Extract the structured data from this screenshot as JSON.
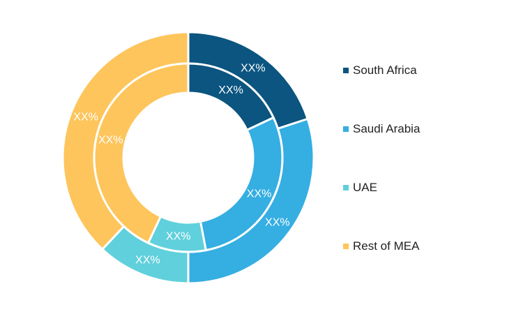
{
  "chart_data": {
    "type": "pie",
    "variant": "nested-donut",
    "title": "",
    "categories": [
      "South Africa",
      "Saudi Arabia",
      "UAE",
      "Rest of MEA"
    ],
    "colors": [
      "#0b5580",
      "#35aee2",
      "#5fd0dc",
      "#fdc55c"
    ],
    "series": [
      {
        "ring": "inner",
        "values": [
          18,
          29,
          10,
          43
        ],
        "labels": [
          "XX%",
          "XX%",
          "XX%",
          "XX%"
        ]
      },
      {
        "ring": "outer",
        "values": [
          20,
          30,
          12,
          38
        ],
        "labels": [
          "XX%",
          "XX%",
          "XX%",
          "XX%"
        ]
      }
    ],
    "legend_position": "right"
  }
}
